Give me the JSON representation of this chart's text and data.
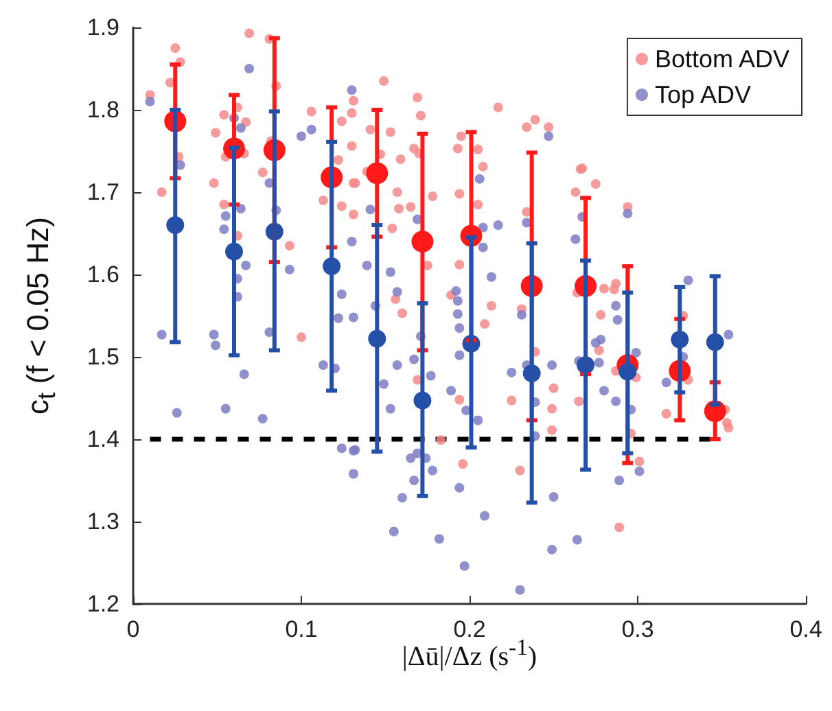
{
  "chart_data": {
    "type": "scatter",
    "xlabel": "|Δū|/Δz (s$^{-1}$)",
    "ylabel": "c$_{t}$ (f < 0.05 Hz)",
    "xlim": [
      0,
      0.4
    ],
    "xticks": [
      0,
      0.1,
      0.2,
      0.3,
      0.4
    ],
    "ylim": [
      1.2,
      1.9
    ],
    "yticks": [
      1.2,
      1.3,
      1.4,
      1.5,
      1.6,
      1.7,
      1.8,
      1.9
    ],
    "legend": "top right",
    "grid": false,
    "marker": "circle",
    "series": [
      {
        "name": "Bottom ADV",
        "color": "#f58a8a",
        "x": [
          0.01,
          0.025,
          0.028,
          0.022,
          0.017,
          0.027,
          0.069,
          0.054,
          0.049,
          0.062,
          0.067,
          0.048,
          0.055,
          0.054,
          0.066,
          0.062,
          0.081,
          0.085,
          0.082,
          0.077,
          0.093,
          0.1,
          0.106,
          0.113,
          0.124,
          0.13,
          0.131,
          0.13,
          0.131,
          0.131,
          0.124,
          0.122,
          0.149,
          0.141,
          0.147,
          0.153,
          0.159,
          0.157,
          0.158,
          0.154,
          0.139,
          0.132,
          0.165,
          0.156,
          0.16,
          0.169,
          0.171,
          0.167,
          0.17,
          0.178,
          0.175,
          0.169,
          0.183,
          0.195,
          0.193,
          0.205,
          0.208,
          0.194,
          0.205,
          0.194,
          0.189,
          0.213,
          0.209,
          0.194,
          0.196,
          0.217,
          0.234,
          0.239,
          0.247,
          0.234,
          0.231,
          0.239,
          0.225,
          0.23,
          0.25,
          0.249,
          0.249,
          0.263,
          0.266,
          0.264,
          0.265,
          0.267,
          0.275,
          0.28,
          0.278,
          0.277,
          0.287,
          0.286,
          0.294,
          0.287,
          0.299,
          0.296,
          0.301,
          0.289,
          0.327,
          0.33,
          0.317,
          0.353,
          0.354,
          0.352
        ],
        "values": [
          1.818,
          1.875,
          1.858,
          1.833,
          1.7,
          1.743,
          1.893,
          1.794,
          1.772,
          1.803,
          1.785,
          1.711,
          1.743,
          1.685,
          1.747,
          1.647,
          1.886,
          1.829,
          1.762,
          1.724,
          1.635,
          1.524,
          1.798,
          1.69,
          1.786,
          1.796,
          1.811,
          1.756,
          1.711,
          1.673,
          1.683,
          1.739,
          1.835,
          1.776,
          1.746,
          1.773,
          1.74,
          1.7,
          1.68,
          1.656,
          1.725,
          1.711,
          1.682,
          1.57,
          1.553,
          1.815,
          1.793,
          1.753,
          1.747,
          1.695,
          1.611,
          1.472,
          1.399,
          1.768,
          1.753,
          1.752,
          1.731,
          1.698,
          1.685,
          1.612,
          1.575,
          1.562,
          1.54,
          1.448,
          1.37,
          1.803,
          1.779,
          1.788,
          1.779,
          1.676,
          1.558,
          1.506,
          1.447,
          1.362,
          1.462,
          1.437,
          1.411,
          1.7,
          1.728,
          1.578,
          1.446,
          1.729,
          1.71,
          1.583,
          1.551,
          1.508,
          1.589,
          1.582,
          1.682,
          1.483,
          1.475,
          1.407,
          1.373,
          1.293,
          1.55,
          1.472,
          1.431,
          1.42,
          1.414,
          1.436
        ]
      },
      {
        "name": "Top ADV",
        "color": "#7d7dc4",
        "x": [
          0.01,
          0.028,
          0.017,
          0.026,
          0.069,
          0.064,
          0.06,
          0.055,
          0.054,
          0.064,
          0.067,
          0.062,
          0.062,
          0.048,
          0.049,
          0.066,
          0.055,
          0.077,
          0.081,
          0.085,
          0.093,
          0.081,
          0.1,
          0.106,
          0.113,
          0.12,
          0.124,
          0.131,
          0.131,
          0.13,
          0.124,
          0.122,
          0.131,
          0.13,
          0.141,
          0.139,
          0.144,
          0.153,
          0.157,
          0.157,
          0.153,
          0.149,
          0.132,
          0.155,
          0.16,
          0.169,
          0.171,
          0.167,
          0.177,
          0.165,
          0.169,
          0.174,
          0.178,
          0.167,
          0.182,
          0.208,
          0.208,
          0.206,
          0.217,
          0.213,
          0.193,
          0.193,
          0.194,
          0.194,
          0.192,
          0.189,
          0.198,
          0.205,
          0.194,
          0.209,
          0.197,
          0.23,
          0.234,
          0.231,
          0.225,
          0.234,
          0.239,
          0.239,
          0.25,
          0.249,
          0.247,
          0.249,
          0.264,
          0.263,
          0.267,
          0.278,
          0.275,
          0.277,
          0.28,
          0.265,
          0.294,
          0.287,
          0.288,
          0.299,
          0.296,
          0.287,
          0.289,
          0.301,
          0.33,
          0.327,
          0.317,
          0.354
        ],
        "values": [
          1.81,
          1.733,
          1.527,
          1.432,
          1.85,
          1.778,
          1.79,
          1.671,
          1.655,
          1.68,
          1.611,
          1.595,
          1.573,
          1.527,
          1.514,
          1.479,
          1.437,
          1.425,
          1.711,
          1.678,
          1.606,
          1.53,
          1.768,
          1.776,
          1.49,
          1.486,
          1.389,
          1.386,
          1.358,
          1.64,
          1.576,
          1.547,
          1.548,
          1.824,
          1.679,
          1.611,
          1.562,
          1.603,
          1.579,
          1.49,
          1.437,
          1.467,
          1.387,
          1.288,
          1.329,
          1.667,
          1.525,
          1.497,
          1.477,
          1.377,
          1.383,
          1.377,
          1.362,
          1.35,
          1.279,
          1.657,
          1.633,
          1.716,
          1.66,
          1.597,
          1.568,
          1.552,
          1.535,
          1.502,
          1.58,
          1.459,
          1.435,
          1.423,
          1.341,
          1.307,
          1.246,
          1.217,
          1.663,
          1.551,
          1.481,
          1.49,
          1.445,
          1.404,
          1.33,
          1.266,
          1.768,
          1.49,
          1.278,
          1.643,
          1.67,
          1.521,
          1.517,
          1.493,
          1.459,
          1.495,
          1.674,
          1.562,
          1.545,
          1.505,
          1.436,
          1.446,
          1.35,
          1.361,
          1.593,
          1.5,
          1.469,
          1.527
        ]
      },
      {
        "type": "line",
        "color": "#000000",
        "line_style": "dashed",
        "marker": "none",
        "x": [
          0.01,
          0.345
        ],
        "values": [
          1.4,
          1.4
        ]
      },
      {
        "color": "#ff1a1a",
        "x": [
          0.025,
          0.06,
          0.084,
          0.118,
          0.145,
          0.172,
          0.201,
          0.237,
          0.269,
          0.294,
          0.325,
          0.346
        ],
        "values": [
          1.786,
          1.753,
          1.751,
          1.718,
          1.723,
          1.64,
          1.647,
          1.586,
          1.586,
          1.49,
          1.483,
          1.434
        ],
        "errors": [
          [
            1.717,
            1.855
          ],
          [
            1.685,
            1.818
          ],
          [
            1.615,
            1.887
          ],
          [
            1.633,
            1.803
          ],
          [
            1.646,
            1.8
          ],
          [
            1.508,
            1.771
          ],
          [
            1.52,
            1.773
          ],
          [
            1.423,
            1.748
          ],
          [
            1.479,
            1.693
          ],
          [
            1.371,
            1.61
          ],
          [
            1.423,
            1.546
          ],
          [
            1.4,
            1.469
          ]
        ]
      },
      {
        "color": "#2450a8",
        "x": [
          0.025,
          0.06,
          0.084,
          0.118,
          0.145,
          0.172,
          0.201,
          0.237,
          0.269,
          0.294,
          0.325,
          0.346
        ],
        "values": [
          1.66,
          1.628,
          1.652,
          1.61,
          1.522,
          1.447,
          1.516,
          1.48,
          1.49,
          1.482,
          1.521,
          1.518
        ],
        "errors": [
          [
            1.518,
            1.8
          ],
          [
            1.502,
            1.754
          ],
          [
            1.508,
            1.798
          ],
          [
            1.459,
            1.761
          ],
          [
            1.385,
            1.66
          ],
          [
            1.331,
            1.565
          ],
          [
            1.39,
            1.645
          ],
          [
            1.323,
            1.638
          ],
          [
            1.363,
            1.617
          ],
          [
            1.383,
            1.578
          ],
          [
            1.457,
            1.585
          ],
          [
            1.442,
            1.598
          ]
        ]
      }
    ]
  }
}
